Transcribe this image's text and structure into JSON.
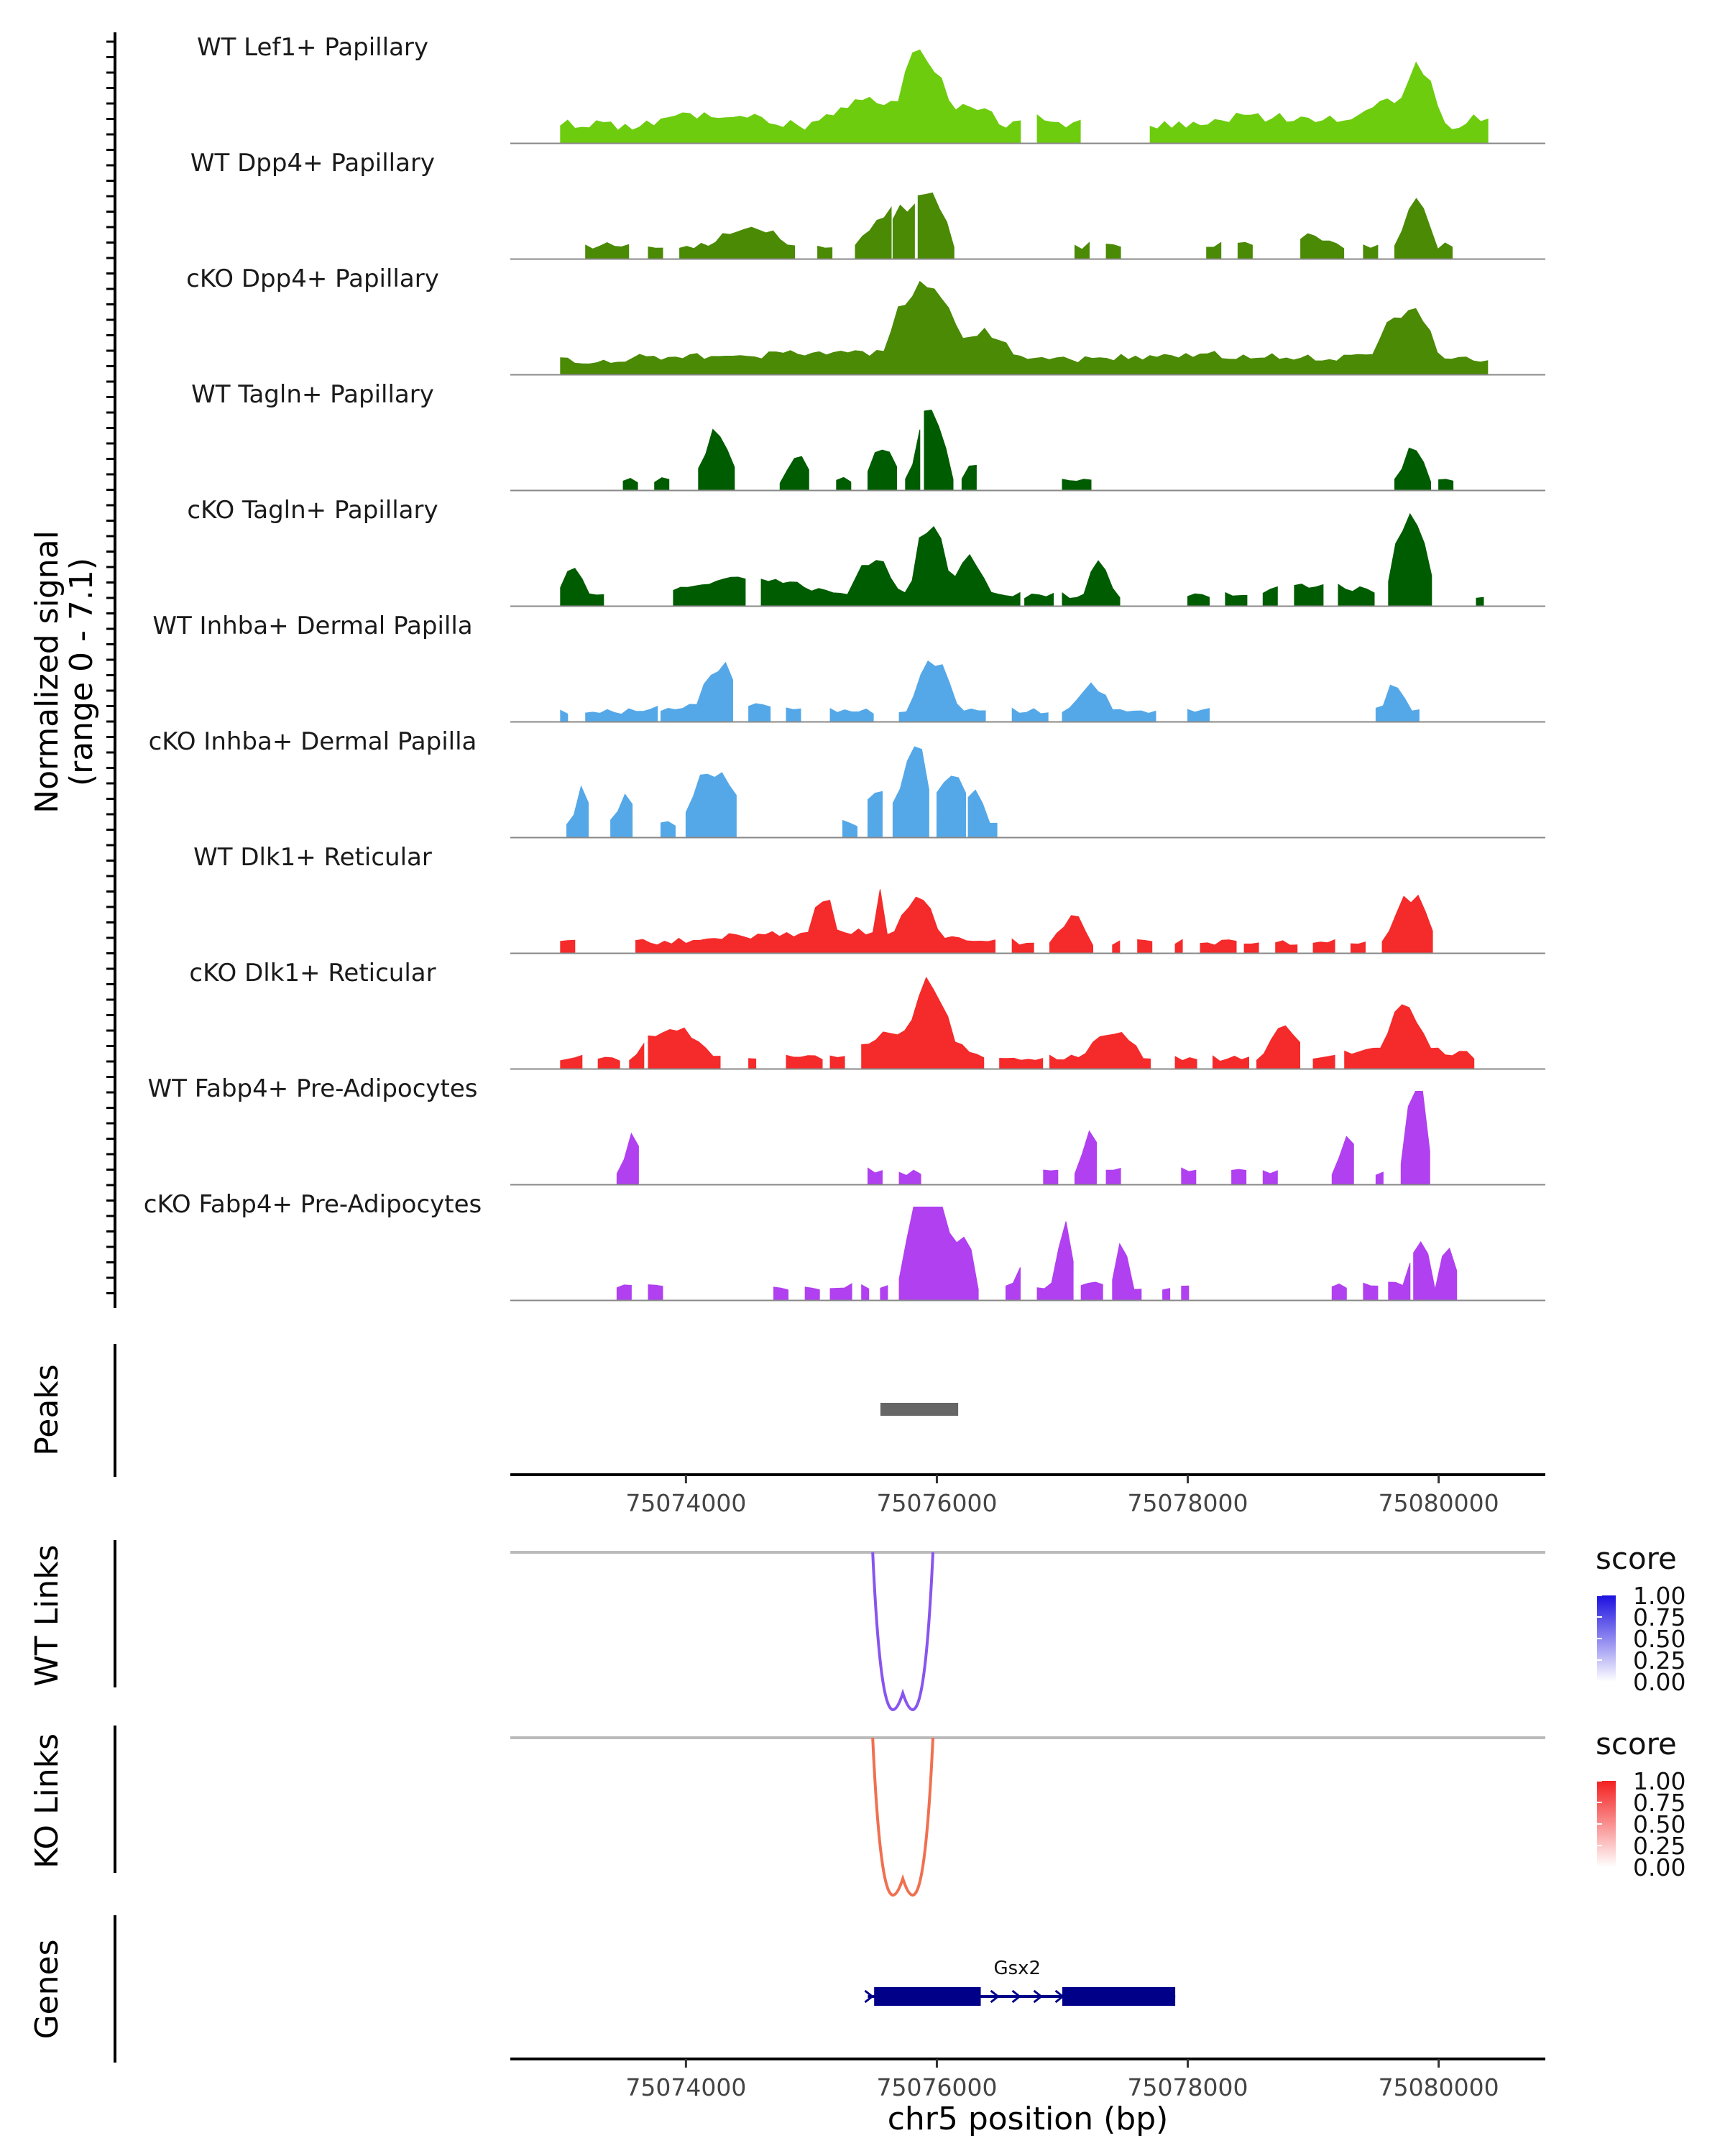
{
  "chart_data": {
    "type": "area",
    "title": "",
    "region": "chr5",
    "xlabel": "chr5 position (bp)",
    "xlim": [
      75072600,
      75080850
    ],
    "x_ticks": [
      75074000,
      75076000,
      75078000,
      75080000
    ],
    "x_tick_labels": [
      "75074000",
      "75076000",
      "75078000",
      "75080000"
    ],
    "coverage_ylabel_line1": "Normalized signal",
    "coverage_ylabel_line2": "(range 0 - 7.1)",
    "signal_range": [
      0,
      7.1
    ],
    "tracks": [
      {
        "name": "WT Lef1+ Papillary",
        "color": "#6dcc0e",
        "base": 0.25,
        "peaks": [
          [
            75073700,
            75074700,
            0.12
          ],
          [
            75075000,
            75075900,
            0.28
          ],
          [
            75075700,
            75076100,
            0.78
          ],
          [
            75076000,
            75076500,
            0.22
          ],
          [
            75076700,
            75077000,
            0.12
          ],
          [
            75078000,
            75079300,
            0.1
          ],
          [
            75079300,
            75080000,
            0.25
          ],
          [
            75079700,
            75080000,
            0.58
          ],
          [
            75080200,
            75080400,
            0.08
          ]
        ],
        "spans": [
          [
            75073000,
            75076700
          ],
          [
            75076800,
            75077200
          ],
          [
            75077700,
            75080400
          ]
        ]
      },
      {
        "name": "WT Dpp4+ Papillary",
        "color": "#4a8a05",
        "base": 0.18,
        "peaks": [
          [
            75074200,
            75074800,
            0.22
          ],
          [
            75075400,
            75076100,
            0.42
          ],
          [
            75075800,
            75076100,
            0.3
          ],
          [
            75079700,
            75079950,
            0.58
          ],
          [
            75078800,
            75079200,
            0.12
          ]
        ],
        "spans": [
          [
            75073200,
            75073600
          ],
          [
            75073700,
            75073850
          ],
          [
            75073950,
            75074900
          ],
          [
            75075050,
            75075200
          ],
          [
            75075350,
            75075650
          ],
          [
            75075850,
            75076150
          ],
          [
            75075650,
            75075850
          ],
          [
            75077100,
            75077250
          ],
          [
            75077350,
            75077500
          ],
          [
            75078150,
            75078300
          ],
          [
            75078400,
            75078520
          ],
          [
            75078900,
            75079300
          ],
          [
            75079400,
            75079520
          ],
          [
            75079650,
            75080150
          ]
        ]
      },
      {
        "name": "cKO Dpp4+ Papillary",
        "color": "#4a8a05",
        "base": 0.2,
        "peaks": [
          [
            75075600,
            75076200,
            0.85
          ],
          [
            75076200,
            75076600,
            0.32
          ],
          [
            75079500,
            75080000,
            0.62
          ],
          [
            75073500,
            75076800,
            0.08
          ],
          [
            75077000,
            75079500,
            0.06
          ]
        ],
        "spans": [
          [
            75073000,
            75080400
          ]
        ]
      },
      {
        "name": "WT Tagln+ Papillary",
        "color": "#005c00",
        "base": 0.14,
        "peaks": [
          [
            75074100,
            75074400,
            0.55
          ],
          [
            75074800,
            75075000,
            0.3
          ],
          [
            75075450,
            75075700,
            0.4
          ],
          [
            75075800,
            75076100,
            0.88
          ],
          [
            75076200,
            75076350,
            0.22
          ],
          [
            75079700,
            75079900,
            0.4
          ]
        ],
        "spans": [
          [
            75073500,
            75073650
          ],
          [
            75073750,
            75073900
          ],
          [
            75074100,
            75074400
          ],
          [
            75074750,
            75075000
          ],
          [
            75075200,
            75075350
          ],
          [
            75075450,
            75075700
          ],
          [
            75075750,
            75075880
          ],
          [
            75075900,
            75076150
          ],
          [
            75076200,
            75076350
          ],
          [
            75077000,
            75077250
          ],
          [
            75079650,
            75079950
          ],
          [
            75080000,
            75080150
          ]
        ]
      },
      {
        "name": "cKO Tagln+ Papillary",
        "color": "#005c00",
        "base": 0.15,
        "peaks": [
          [
            75073000,
            75073200,
            0.4
          ],
          [
            75075300,
            75075700,
            0.4
          ],
          [
            75075800,
            75076100,
            0.85
          ],
          [
            75076100,
            75076400,
            0.45
          ],
          [
            75077200,
            75077400,
            0.4
          ],
          [
            75079600,
            75079950,
            0.95
          ],
          [
            75073800,
            75075100,
            0.18
          ],
          [
            75078500,
            75079500,
            0.12
          ]
        ],
        "spans": [
          [
            75073000,
            75073400
          ],
          [
            75073900,
            75074500
          ],
          [
            75074600,
            75076700
          ],
          [
            75076700,
            75076950
          ],
          [
            75077000,
            75077500
          ],
          [
            75078000,
            75078200
          ],
          [
            75078300,
            75078500
          ],
          [
            75078600,
            75078750
          ],
          [
            75078850,
            75079100
          ],
          [
            75079200,
            75079500
          ],
          [
            75079600,
            75080000
          ],
          [
            75080300,
            75080400
          ]
        ]
      },
      {
        "name": "WT Inhba+ Dermal Papilla",
        "color": "#55a8e8",
        "base": 0.15,
        "peaks": [
          [
            75074100,
            75074450,
            0.45
          ],
          [
            75075800,
            75076150,
            0.6
          ],
          [
            75077100,
            75077400,
            0.3
          ],
          [
            75079550,
            75079750,
            0.3
          ],
          [
            75073700,
            75075200,
            0.08
          ]
        ],
        "spans": [
          [
            75073000,
            75073100
          ],
          [
            75073200,
            75073800
          ],
          [
            75073800,
            75074400
          ],
          [
            75074500,
            75074700
          ],
          [
            75074800,
            75074950
          ],
          [
            75075150,
            75075500
          ],
          [
            75075700,
            75076400
          ],
          [
            75076600,
            75076900
          ],
          [
            75077000,
            75077800
          ],
          [
            75078000,
            75078200
          ],
          [
            75079500,
            75079900
          ]
        ]
      },
      {
        "name": "cKO Inhba+ Dermal Papilla",
        "color": "#55a8e8",
        "base": 0.2,
        "peaks": [
          [
            75073100,
            75073250,
            0.4
          ],
          [
            75073450,
            75073600,
            0.3
          ],
          [
            75074000,
            75074450,
            0.6
          ],
          [
            75075400,
            75075700,
            0.45
          ],
          [
            75075700,
            75075950,
            1.0
          ],
          [
            75075950,
            75076200,
            0.55
          ],
          [
            75076150,
            75076400,
            0.4
          ]
        ],
        "spans": [
          [
            75073050,
            75073250
          ],
          [
            75073400,
            75073600
          ],
          [
            75073800,
            75073950
          ],
          [
            75074000,
            75074450
          ],
          [
            75075250,
            75075400
          ],
          [
            75075450,
            75075600
          ],
          [
            75075650,
            75075950
          ],
          [
            75076000,
            75076250
          ],
          [
            75076250,
            75076500
          ]
        ]
      },
      {
        "name": "WT Dlk1+ Reticular",
        "color": "#f52a2a",
        "base": 0.15,
        "peaks": [
          [
            75074000,
            75076500,
            0.12
          ],
          [
            75075000,
            75075200,
            0.4
          ],
          [
            75075500,
            75075600,
            0.55
          ],
          [
            75075700,
            75076000,
            0.45
          ],
          [
            75076950,
            75077200,
            0.3
          ],
          [
            75079600,
            75079950,
            0.55
          ]
        ],
        "spans": [
          [
            75073000,
            75073150
          ],
          [
            75073600,
            75076500
          ],
          [
            75076600,
            75076800
          ],
          [
            75076900,
            75077300
          ],
          [
            75077400,
            75077500
          ],
          [
            75077600,
            75077750
          ],
          [
            75077900,
            75078000
          ],
          [
            75078100,
            75078400
          ],
          [
            75078450,
            75078600
          ],
          [
            75078700,
            75078900
          ],
          [
            75079000,
            75079200
          ],
          [
            75079300,
            75079450
          ],
          [
            75079550,
            75080000
          ]
        ]
      },
      {
        "name": "cKO Dlk1+ Reticular",
        "color": "#f52a2a",
        "base": 0.15,
        "peaks": [
          [
            75073600,
            75074200,
            0.35
          ],
          [
            75075300,
            75076300,
            0.35
          ],
          [
            75075800,
            75076100,
            0.6
          ],
          [
            75077200,
            75077600,
            0.35
          ],
          [
            75078600,
            75078950,
            0.35
          ],
          [
            75079550,
            75079900,
            0.45
          ],
          [
            75079000,
            75080300,
            0.12
          ]
        ],
        "spans": [
          [
            75073000,
            75073200
          ],
          [
            75073300,
            75073500
          ],
          [
            75073550,
            75073700
          ],
          [
            75073700,
            75074300
          ],
          [
            75074500,
            75074600
          ],
          [
            75074800,
            75075100
          ],
          [
            75075150,
            75075300
          ],
          [
            75075400,
            75076400
          ],
          [
            75076500,
            75076850
          ],
          [
            75076900,
            75077750
          ],
          [
            75077900,
            75078100
          ],
          [
            75078200,
            75078500
          ],
          [
            75078550,
            75078950
          ],
          [
            75079000,
            75079200
          ],
          [
            75079250,
            75080300
          ]
        ]
      },
      {
        "name": "WT Fabp4+ Pre-Adipocytes",
        "color": "#b040f0",
        "base": 0.18,
        "peaks": [
          [
            75073500,
            75073650,
            0.5
          ],
          [
            75077150,
            75077300,
            0.45
          ],
          [
            75079200,
            75079350,
            0.5
          ],
          [
            75079750,
            75079900,
            0.95
          ],
          [
            75079700,
            75079950,
            0.55
          ]
        ],
        "spans": [
          [
            75073450,
            75073650
          ],
          [
            75075450,
            75075600
          ],
          [
            75075700,
            75075900
          ],
          [
            75076850,
            75077000
          ],
          [
            75077100,
            75077300
          ],
          [
            75077350,
            75077500
          ],
          [
            75077950,
            75078100
          ],
          [
            75078350,
            75078500
          ],
          [
            75078600,
            75078750
          ],
          [
            75079150,
            75079350
          ],
          [
            75079500,
            75079600
          ],
          [
            75079700,
            75079950
          ]
        ]
      },
      {
        "name": "cKO Fabp4+ Pre-Adipocytes",
        "color": "#b040f0",
        "base": 0.2,
        "peaks": [
          [
            75075750,
            75076100,
            1.0
          ],
          [
            75075700,
            75076200,
            0.6
          ],
          [
            75076150,
            75076300,
            0.55
          ],
          [
            75076950,
            75077100,
            0.7
          ],
          [
            75077400,
            75077550,
            0.5
          ],
          [
            75079750,
            75079950,
            0.5
          ],
          [
            75080000,
            75080150,
            0.45
          ],
          [
            75076650,
            75076750,
            0.4
          ]
        ],
        "spans": [
          [
            75073450,
            75073600
          ],
          [
            75073700,
            75073850
          ],
          [
            75074700,
            75074850
          ],
          [
            75074950,
            75075100
          ],
          [
            75075150,
            75075350
          ],
          [
            75075400,
            75075500
          ],
          [
            75075550,
            75075650
          ],
          [
            75075700,
            75076350
          ],
          [
            75076550,
            75076700
          ],
          [
            75076800,
            75077100
          ],
          [
            75077150,
            75077350
          ],
          [
            75077400,
            75077650
          ],
          [
            75077800,
            75077900
          ],
          [
            75077950,
            75078050
          ],
          [
            75079150,
            75079300
          ],
          [
            75079400,
            75079550
          ],
          [
            75079600,
            75079800
          ],
          [
            75079800,
            75080200
          ]
        ]
      }
    ],
    "peaks_track": {
      "label": "Peaks",
      "color": "#666666",
      "regions": [
        [
          75075550,
          75076170
        ]
      ]
    },
    "links_tracks": [
      {
        "label": "WT Links",
        "arc_color": "#8855ee",
        "anchors": [
          75075500,
          75075900
        ],
        "depth": 1.0,
        "legend": {
          "title": "score",
          "colors": [
            "#ffffff",
            "#1c10e0"
          ],
          "ticks": [
            "1.00",
            "0.75",
            "0.50",
            "0.25",
            "0.00"
          ]
        }
      },
      {
        "label": "KO Links",
        "arc_color": "#f07050",
        "anchors": [
          75075500,
          75075900
        ],
        "depth": 1.0,
        "legend": {
          "title": "score",
          "colors": [
            "#ffffff",
            "#f42020"
          ],
          "ticks": [
            "1.00",
            "0.75",
            "0.50",
            "0.25",
            "0.00"
          ]
        }
      }
    ],
    "genes_track": {
      "label": "Genes",
      "color": "#000088",
      "genes": [
        {
          "name": "Gsx2",
          "start": 75075450,
          "end": 75077900,
          "exons": [
            [
              75075500,
              75076350
            ],
            [
              75077000,
              75077900
            ]
          ],
          "strand": "+"
        }
      ]
    }
  }
}
